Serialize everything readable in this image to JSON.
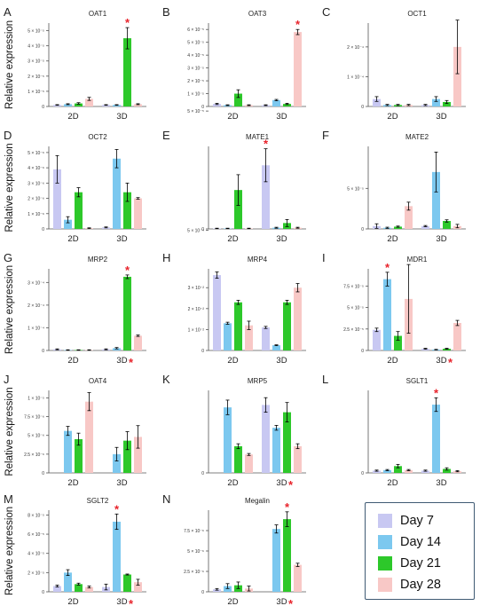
{
  "colors": {
    "day7": "#c8c8f2",
    "day14": "#7cc8ef",
    "day21": "#2dc82a",
    "day28": "#f8c8c6",
    "star": "#e8232b",
    "error": "#000000"
  },
  "legend": {
    "items": [
      {
        "label": "Day 7",
        "color": "#c8c8f2"
      },
      {
        "label": "Day 14",
        "color": "#7cc8ef"
      },
      {
        "label": "Day 21",
        "color": "#2dc82a"
      },
      {
        "label": "Day 28",
        "color": "#f8c8c6"
      }
    ]
  },
  "chart_data": [
    {
      "type": "bar",
      "panel_letter": "A",
      "title": "OAT1",
      "ylabel": "Relative expression",
      "categories": [
        "2D",
        "3D"
      ],
      "yticks": [
        "0",
        "1 × 10⁻⁵",
        "2 × 10⁻⁵",
        "3 × 10⁻⁵",
        "4 × 10⁻⁵",
        "5 × 10⁻⁵"
      ],
      "ylim": [
        0,
        5.5
      ],
      "series": [
        {
          "name": "Day 7",
          "values": [
            0.1,
            0.1
          ],
          "errors": [
            0.02,
            0.02
          ]
        },
        {
          "name": "Day 14",
          "values": [
            0.15,
            0.1
          ],
          "errors": [
            0.03,
            0.02
          ]
        },
        {
          "name": "Day 21",
          "values": [
            0.2,
            4.5
          ],
          "errors": [
            0.05,
            0.7
          ]
        },
        {
          "name": "Day 28",
          "values": [
            0.5,
            0.15
          ],
          "errors": [
            0.1,
            0.03
          ]
        }
      ],
      "star_over": [
        {
          "category": 1,
          "series": 2
        }
      ],
      "xlabel_star": false
    },
    {
      "type": "bar",
      "panel_letter": "B",
      "title": "OAT3",
      "ylabel": "",
      "categories": [
        "2D",
        "3D"
      ],
      "yticks": [
        "0",
        "1 × 10⁻⁵",
        "2 × 10⁻⁵",
        "3 × 10⁻⁵",
        "4 × 10⁻⁵",
        "5 × 10⁻⁵",
        "6 × 10⁻⁵"
      ],
      "ylim": [
        0,
        6.5
      ],
      "series": [
        {
          "name": "Day 7",
          "values": [
            0.2,
            0.1
          ],
          "errors": [
            0.05,
            0.03
          ]
        },
        {
          "name": "Day 14",
          "values": [
            0.1,
            0.5
          ],
          "errors": [
            0.03,
            0.05
          ]
        },
        {
          "name": "Day 21",
          "values": [
            1.0,
            0.2
          ],
          "errors": [
            0.3,
            0.05
          ]
        },
        {
          "name": "Day 28",
          "values": [
            0.1,
            5.8
          ],
          "errors": [
            0.03,
            0.2
          ]
        }
      ],
      "star_over": [
        {
          "category": 1,
          "series": 3
        }
      ],
      "xlabel_star": false
    },
    {
      "type": "bar",
      "panel_letter": "C",
      "title": "OCT1",
      "ylabel": "",
      "categories": [
        "2D",
        "3D"
      ],
      "yticks": [
        "0",
        "1 × 10⁻⁴",
        "2 × 10⁻⁴"
      ],
      "ylim": [
        0,
        2.8
      ],
      "series": [
        {
          "name": "Day 7",
          "values": [
            0.25,
            0.05
          ],
          "errors": [
            0.08,
            0.02
          ]
        },
        {
          "name": "Day 14",
          "values": [
            0.05,
            0.25
          ],
          "errors": [
            0.02,
            0.08
          ]
        },
        {
          "name": "Day 21",
          "values": [
            0.05,
            0.15
          ],
          "errors": [
            0.02,
            0.05
          ]
        },
        {
          "name": "Day 28",
          "values": [
            0.05,
            2.0
          ],
          "errors": [
            0.02,
            0.9
          ]
        }
      ],
      "star_over": [],
      "xlabel_star": false
    },
    {
      "type": "bar",
      "panel_letter": "D",
      "title": "OCT2",
      "ylabel": "Relative expression",
      "categories": [
        "2D",
        "3D"
      ],
      "yticks": [
        "0",
        "1 × 10⁻⁶",
        "2 × 10⁻⁶",
        "3 × 10⁻⁶",
        "4 × 10⁻⁶",
        "5 × 10⁻⁶"
      ],
      "ylim": [
        0,
        5.4
      ],
      "series": [
        {
          "name": "Day 7",
          "values": [
            3.9,
            0.1
          ],
          "errors": [
            0.9,
            0.03
          ]
        },
        {
          "name": "Day 14",
          "values": [
            0.6,
            4.6
          ],
          "errors": [
            0.2,
            0.6
          ]
        },
        {
          "name": "Day 21",
          "values": [
            2.4,
            2.4
          ],
          "errors": [
            0.3,
            0.6
          ]
        },
        {
          "name": "Day 28",
          "values": [
            0.05,
            2.0
          ],
          "errors": [
            0.02,
            0.05
          ]
        }
      ],
      "star_over": [],
      "xlabel_star": false
    },
    {
      "type": "bar",
      "panel_letter": "E",
      "title": "MATE1",
      "ylabel": "",
      "categories": [
        "2D",
        "3D"
      ],
      "yticks": [
        "0",
        "5 × 10⁻⁵",
        "1 × 10⁻⁴",
        "1.5 × 10⁻⁴",
        "2 × 10⁻⁴",
        "2.5 × 10⁻⁴",
        "3 × 10⁻⁴"
      ],
      "ylim": [
        0,
        3.5
      ],
      "series": [
        {
          "name": "Day 7",
          "values": [
            0.02,
            2.7
          ],
          "errors": [
            0.01,
            0.7
          ]
        },
        {
          "name": "Day 14",
          "values": [
            0.02,
            0.05
          ],
          "errors": [
            0.01,
            0.02
          ]
        },
        {
          "name": "Day 21",
          "values": [
            1.65,
            0.25
          ],
          "errors": [
            0.65,
            0.15
          ]
        },
        {
          "name": "Day 28",
          "values": [
            0.02,
            0.05
          ],
          "errors": [
            0.01,
            0.02
          ]
        }
      ],
      "star_over": [
        {
          "category": 1,
          "series": 0
        }
      ],
      "xlabel_star": false
    },
    {
      "type": "bar",
      "panel_letter": "F",
      "title": "MATE2",
      "ylabel": "",
      "categories": [
        "2D",
        "3D"
      ],
      "yticks": [
        "0",
        "5 × 10⁻⁵",
        "1 × 10⁻⁴"
      ],
      "ylim": [
        0,
        1.45
      ],
      "series": [
        {
          "name": "Day 7",
          "values": [
            0.05,
            0.05
          ],
          "errors": [
            0.04,
            0.01
          ]
        },
        {
          "name": "Day 14",
          "values": [
            0.02,
            1.0
          ],
          "errors": [
            0.01,
            0.35
          ]
        },
        {
          "name": "Day 21",
          "values": [
            0.04,
            0.14
          ],
          "errors": [
            0.01,
            0.02
          ]
        },
        {
          "name": "Day 28",
          "values": [
            0.4,
            0.05
          ],
          "errors": [
            0.07,
            0.03
          ]
        }
      ],
      "star_over": [],
      "xlabel_star": false
    },
    {
      "type": "bar",
      "panel_letter": "G",
      "title": "MRP2",
      "ylabel": "Relative expression",
      "categories": [
        "2D",
        "3D"
      ],
      "yticks": [
        "0",
        "1 × 10⁻⁴",
        "2 × 10⁻⁴",
        "3 × 10⁻⁴"
      ],
      "ylim": [
        0,
        3.6
      ],
      "series": [
        {
          "name": "Day 7",
          "values": [
            0.05,
            0.05
          ],
          "errors": [
            0.02,
            0.02
          ]
        },
        {
          "name": "Day 14",
          "values": [
            0.02,
            0.1
          ],
          "errors": [
            0.01,
            0.03
          ]
        },
        {
          "name": "Day 21",
          "values": [
            0.02,
            3.25
          ],
          "errors": [
            0.01,
            0.08
          ]
        },
        {
          "name": "Day 28",
          "values": [
            0.02,
            0.65
          ],
          "errors": [
            0.01,
            0.03
          ]
        }
      ],
      "star_over": [
        {
          "category": 1,
          "series": 2
        }
      ],
      "xlabel_star": true
    },
    {
      "type": "bar",
      "panel_letter": "H",
      "title": "MRP4",
      "ylabel": "",
      "categories": [
        "2D",
        "3D"
      ],
      "yticks": [
        "0",
        "1 × 10⁻²",
        "2 × 10⁻²",
        "3 × 10⁻²"
      ],
      "ylim": [
        0,
        3.9
      ],
      "series": [
        {
          "name": "Day 7",
          "values": [
            3.6,
            1.1
          ],
          "errors": [
            0.15,
            0.05
          ]
        },
        {
          "name": "Day 14",
          "values": [
            1.3,
            0.25
          ],
          "errors": [
            0.05,
            0.02
          ]
        },
        {
          "name": "Day 21",
          "values": [
            2.3,
            2.3
          ],
          "errors": [
            0.1,
            0.1
          ]
        },
        {
          "name": "Day 28",
          "values": [
            1.2,
            3.0
          ],
          "errors": [
            0.2,
            0.2
          ]
        }
      ],
      "star_over": [],
      "xlabel_star": false
    },
    {
      "type": "bar",
      "panel_letter": "I",
      "title": "MDR1",
      "ylabel": "",
      "categories": [
        "2D",
        "3D"
      ],
      "yticks": [
        "0",
        "2.5 × 10⁻⁵",
        "5 × 10⁻⁵",
        "7.5 × 10⁻⁵"
      ],
      "ylim": [
        0,
        9.5
      ],
      "series": [
        {
          "name": "Day 7",
          "values": [
            2.4,
            0.2
          ],
          "errors": [
            0.2,
            0.05
          ]
        },
        {
          "name": "Day 14",
          "values": [
            8.3,
            0.1
          ],
          "errors": [
            0.8,
            0.03
          ]
        },
        {
          "name": "Day 21",
          "values": [
            1.7,
            0.2
          ],
          "errors": [
            0.5,
            0.05
          ]
        },
        {
          "name": "Day 28",
          "values": [
            6.0,
            3.2
          ],
          "errors": [
            4.0,
            0.3
          ]
        }
      ],
      "star_over": [
        {
          "category": 0,
          "series": 1
        }
      ],
      "xlabel_star": true
    },
    {
      "type": "bar",
      "panel_letter": "J",
      "title": "OAT4",
      "ylabel": "Relative expression",
      "categories": [
        "2D",
        "3D"
      ],
      "yticks": [
        "0",
        "2.5 × 10⁻⁶",
        "5 × 10⁻⁶",
        "7.5 × 10⁻⁶",
        "1 × 10⁻⁵"
      ],
      "ylim": [
        0,
        11
      ],
      "series": [
        {
          "name": "Day 7",
          "values": [
            0,
            0
          ],
          "errors": [
            0,
            0
          ]
        },
        {
          "name": "Day 14",
          "values": [
            5.6,
            2.5
          ],
          "errors": [
            0.6,
            0.9
          ]
        },
        {
          "name": "Day 21",
          "values": [
            4.5,
            4.3
          ],
          "errors": [
            0.8,
            1.2
          ]
        },
        {
          "name": "Day 28",
          "values": [
            9.5,
            4.8
          ],
          "errors": [
            1.2,
            1.5
          ]
        }
      ],
      "star_over": [],
      "xlabel_star": false
    },
    {
      "type": "bar",
      "panel_letter": "K",
      "title": "MRP5",
      "ylabel": "",
      "categories": [
        "2D",
        "3D"
      ],
      "yticks": [
        "0",
        "5 × 10⁻⁴",
        "1 × 10⁻³",
        "1.5 × 10⁻³"
      ],
      "ylim": [
        0,
        1.7
      ],
      "series": [
        {
          "name": "Day 7",
          "values": [
            0,
            1.4
          ],
          "errors": [
            0,
            0.15
          ]
        },
        {
          "name": "Day 14",
          "values": [
            1.35,
            0.93
          ],
          "errors": [
            0.15,
            0.05
          ]
        },
        {
          "name": "Day 21",
          "values": [
            0.55,
            1.25
          ],
          "errors": [
            0.05,
            0.2
          ]
        },
        {
          "name": "Day 28",
          "values": [
            0.38,
            0.55
          ],
          "errors": [
            0.02,
            0.05
          ]
        }
      ],
      "star_over": [],
      "xlabel_star": true
    },
    {
      "type": "bar",
      "panel_letter": "L",
      "title": "SGLT1",
      "ylabel": "",
      "categories": [
        "2D",
        "3D"
      ],
      "yticks": [
        "0",
        "5 × 10⁻⁵",
        "1 × 10⁻⁴"
      ],
      "ylim": [
        0,
        1.45
      ],
      "series": [
        {
          "name": "Day 7",
          "values": [
            0.04,
            0.04
          ],
          "errors": [
            0.01,
            0.01
          ]
        },
        {
          "name": "Day 14",
          "values": [
            0.05,
            1.2
          ],
          "errors": [
            0.01,
            0.12
          ]
        },
        {
          "name": "Day 21",
          "values": [
            0.12,
            0.07
          ],
          "errors": [
            0.03,
            0.02
          ]
        },
        {
          "name": "Day 28",
          "values": [
            0.05,
            0.03
          ],
          "errors": [
            0.01,
            0.01
          ]
        }
      ],
      "star_over": [
        {
          "category": 1,
          "series": 1
        }
      ],
      "xlabel_star": false
    },
    {
      "type": "bar",
      "panel_letter": "M",
      "title": "SGLT2",
      "ylabel": "Relative expression",
      "categories": [
        "2D",
        "3D"
      ],
      "yticks": [
        "0",
        "2 × 10⁻⁵",
        "4 × 10⁻⁵",
        "6 × 10⁻⁵",
        "8 × 10⁻⁵"
      ],
      "ylim": [
        0,
        8.5
      ],
      "series": [
        {
          "name": "Day 7",
          "values": [
            0.6,
            0.5
          ],
          "errors": [
            0.1,
            0.3
          ]
        },
        {
          "name": "Day 14",
          "values": [
            2.0,
            7.3
          ],
          "errors": [
            0.3,
            0.8
          ]
        },
        {
          "name": "Day 21",
          "values": [
            0.8,
            1.8
          ],
          "errors": [
            0.1,
            0.05
          ]
        },
        {
          "name": "Day 28",
          "values": [
            0.5,
            1.0
          ],
          "errors": [
            0.1,
            0.3
          ]
        }
      ],
      "star_over": [
        {
          "category": 1,
          "series": 1
        }
      ],
      "xlabel_star": true
    },
    {
      "type": "bar",
      "panel_letter": "N",
      "title": "Megalin",
      "ylabel": "",
      "categories": [
        "2D",
        "3D"
      ],
      "yticks": [
        "0",
        "2.5 × 10⁻⁶",
        "5 × 10⁻⁶",
        "7.5 × 10⁻⁶"
      ],
      "ylim": [
        0,
        10
      ],
      "series": [
        {
          "name": "Day 7",
          "values": [
            0.3,
            0
          ],
          "errors": [
            0.1,
            0
          ]
        },
        {
          "name": "Day 14",
          "values": [
            0.7,
            7.7
          ],
          "errors": [
            0.3,
            0.5
          ]
        },
        {
          "name": "Day 21",
          "values": [
            0.8,
            8.9
          ],
          "errors": [
            0.4,
            0.9
          ]
        },
        {
          "name": "Day 28",
          "values": [
            0.4,
            3.3
          ],
          "errors": [
            0.3,
            0.2
          ]
        }
      ],
      "star_over": [
        {
          "category": 1,
          "series": 2
        }
      ],
      "xlabel_star": true
    }
  ]
}
